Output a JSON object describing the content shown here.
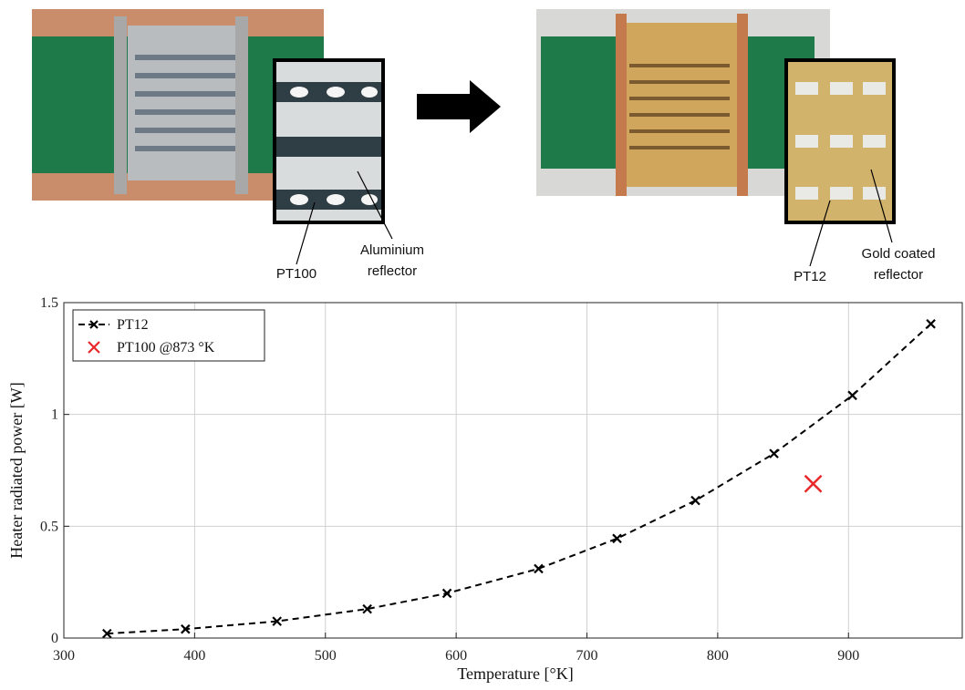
{
  "chart_data": {
    "type": "line",
    "xlabel": "Temperature [°K]",
    "ylabel": "Heater radiated power [W]",
    "xlim": [
      300,
      987
    ],
    "ylim": [
      0,
      1.5
    ],
    "xticks": [
      300,
      400,
      500,
      600,
      700,
      800,
      900
    ],
    "yticks": [
      0,
      0.5,
      1,
      1.5
    ],
    "grid": true,
    "legend": "upper left",
    "series": [
      {
        "name": "PT12",
        "color": "#000000",
        "line_style": "dashed",
        "marker": "x",
        "x": [
          333,
          393,
          463,
          532,
          593,
          663,
          723,
          783,
          843,
          903,
          963
        ],
        "values": [
          0.02,
          0.04,
          0.075,
          0.13,
          0.2,
          0.31,
          0.445,
          0.615,
          0.825,
          1.085,
          1.405
        ]
      },
      {
        "name": "PT100 @873 °K",
        "color": "#e8282b",
        "line_style": "none",
        "marker": "x",
        "x": [
          873
        ],
        "values": [
          0.69
        ]
      }
    ],
    "annotations": [
      {
        "text": "PT100"
      },
      {
        "text": [
          "Aluminium",
          "reflector"
        ]
      },
      {
        "text": "PT12"
      },
      {
        "text": [
          "Gold coated",
          "reflector"
        ]
      }
    ]
  }
}
